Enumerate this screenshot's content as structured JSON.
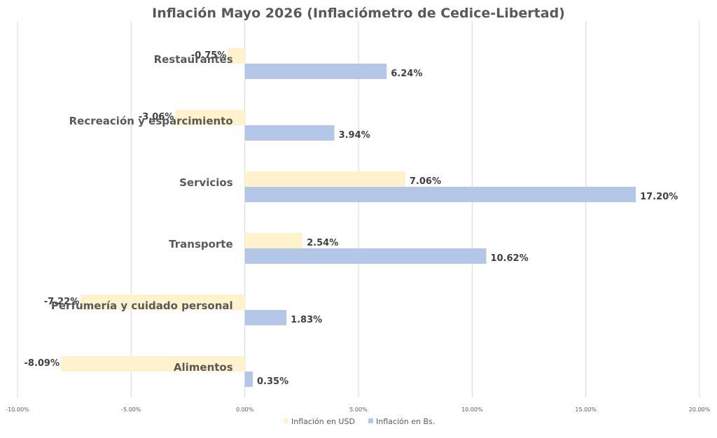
{
  "colors": {
    "usd": "#fff2cc",
    "bs": "#b4c7e7",
    "grid": "#d9d9d9",
    "text": "#595959"
  },
  "chart_data": {
    "type": "bar",
    "orientation": "horizontal",
    "title": "Inflación Mayo 2026 (Inflaciómetro de Cedice-Libertad)",
    "categories": [
      "Restaurantes",
      "Recreación y esparcimiento",
      "Servicios",
      "Transporte",
      "Perfumería y cuidado personal",
      "Alimentos"
    ],
    "series": [
      {
        "name": "Inflación en USD",
        "values": [
          -0.75,
          -3.06,
          7.06,
          2.54,
          -7.22,
          -8.09
        ],
        "labels": [
          "-0.75%",
          "-3.06%",
          "7.06%",
          "2.54%",
          "-7.22%",
          "-8.09%"
        ]
      },
      {
        "name": "Inflación en Bs.",
        "values": [
          6.24,
          3.94,
          17.2,
          10.62,
          1.83,
          0.35
        ],
        "labels": [
          "6.24%",
          "3.94%",
          "17.20%",
          "10.62%",
          "1.83%",
          "0.35%"
        ]
      }
    ],
    "xlim": [
      -10,
      20
    ],
    "ticks": [
      -10,
      -5,
      0,
      5,
      10,
      15,
      20
    ],
    "tick_labels": [
      "-10.00%",
      "-5.00%",
      "0.00%",
      "5.00%",
      "10.00%",
      "15.00%",
      "20.00%"
    ],
    "grid": true,
    "legend_position": "bottom"
  }
}
